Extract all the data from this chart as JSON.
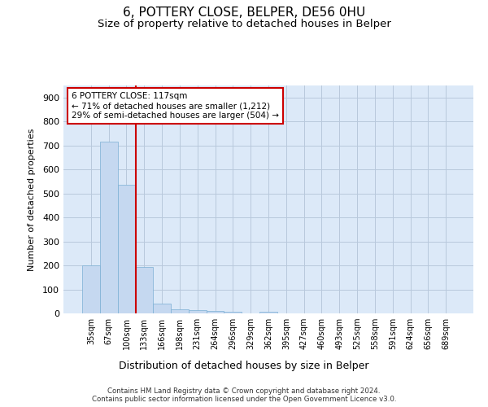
{
  "title": "6, POTTERY CLOSE, BELPER, DE56 0HU",
  "subtitle": "Size of property relative to detached houses in Belper",
  "xlabel": "Distribution of detached houses by size in Belper",
  "ylabel": "Number of detached properties",
  "categories": [
    "35sqm",
    "67sqm",
    "100sqm",
    "133sqm",
    "166sqm",
    "198sqm",
    "231sqm",
    "264sqm",
    "296sqm",
    "329sqm",
    "362sqm",
    "395sqm",
    "427sqm",
    "460sqm",
    "493sqm",
    "525sqm",
    "558sqm",
    "591sqm",
    "624sqm",
    "656sqm",
    "689sqm"
  ],
  "values": [
    200,
    715,
    535,
    193,
    40,
    17,
    14,
    10,
    8,
    0,
    8,
    0,
    0,
    0,
    0,
    0,
    0,
    0,
    0,
    0,
    0
  ],
  "bar_color": "#c5d8f0",
  "bar_edge_color": "#7bafd4",
  "annotation_line1": "6 POTTERY CLOSE: 117sqm",
  "annotation_line2": "← 71% of detached houses are smaller (1,212)",
  "annotation_line3": "29% of semi-detached houses are larger (504) →",
  "ylim": [
    0,
    950
  ],
  "yticks": [
    0,
    100,
    200,
    300,
    400,
    500,
    600,
    700,
    800,
    900
  ],
  "footer1": "Contains HM Land Registry data © Crown copyright and database right 2024.",
  "footer2": "Contains public sector information licensed under the Open Government Licence v3.0.",
  "background_color": "#ffffff",
  "plot_bg_color": "#dce9f8",
  "grid_color": "#b8c8dc",
  "title_fontsize": 11,
  "subtitle_fontsize": 9.5,
  "red_line_x": 2.52,
  "annotation_box_color": "#ffffff",
  "annotation_box_edge_color": "#cc0000"
}
